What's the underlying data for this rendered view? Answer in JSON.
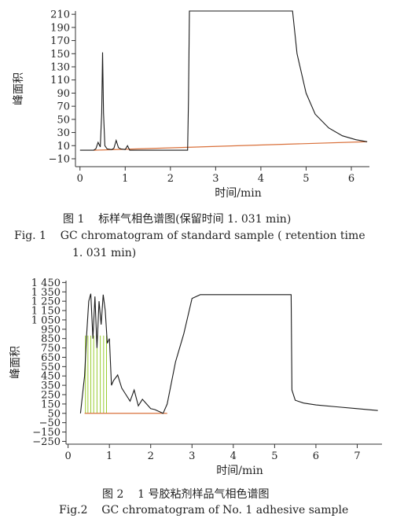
{
  "chart_data": [
    {
      "type": "line",
      "xlabel": "时间/min",
      "ylabel": "峰面积",
      "xlim": [
        -0.1,
        6.4
      ],
      "ylim": [
        -22,
        215
      ],
      "xticks": [
        0,
        1,
        2,
        3,
        4,
        5,
        6
      ],
      "yticks": [
        -10,
        10,
        30,
        50,
        70,
        90,
        110,
        130,
        150,
        170,
        190,
        210
      ],
      "series": [
        {
          "x": [
            0,
            0.3,
            0.35,
            0.4,
            0.45,
            0.48,
            0.5,
            0.52,
            0.55,
            0.6,
            0.7,
            0.75,
            0.8,
            0.85,
            0.9,
            1.0,
            1.05,
            1.1,
            1.2,
            1.5,
            2.0,
            2.38,
            2.4,
            2.42,
            2.45,
            4.7,
            4.8,
            5.0,
            5.2,
            5.5,
            5.8,
            6.1,
            6.35
          ],
          "y": [
            3,
            3,
            5,
            15,
            8,
            60,
            152,
            60,
            10,
            5,
            4,
            6,
            18,
            7,
            5,
            4,
            10,
            3,
            3,
            3,
            3,
            3,
            80,
            215,
            215,
            215,
            150,
            90,
            58,
            37,
            25,
            19,
            16
          ]
        }
      ],
      "baseline": {
        "x": [
          0.3,
          6.35
        ],
        "y": [
          3,
          16
        ]
      }
    },
    {
      "type": "line",
      "xlabel": "时间/min",
      "ylabel": "峰面积",
      "xlim": [
        -0.05,
        7.6
      ],
      "ylim": [
        -280,
        1470
      ],
      "xticks": [
        0,
        1,
        2,
        3,
        4,
        5,
        6,
        7
      ],
      "yticks": [
        1450,
        1350,
        1250,
        1150,
        1050,
        950,
        850,
        750,
        650,
        550,
        450,
        350,
        250,
        150,
        50,
        -50,
        -150,
        -250
      ],
      "series": [
        {
          "x": [
            0.3,
            0.4,
            0.45,
            0.5,
            0.55,
            0.6,
            0.65,
            0.7,
            0.75,
            0.8,
            0.85,
            0.9,
            0.95,
            1.0,
            1.05,
            1.1,
            1.2,
            1.3,
            1.4,
            1.5,
            1.6,
            1.7,
            1.8,
            1.9,
            2.0,
            2.1,
            2.2,
            2.3,
            2.4,
            2.6,
            2.8,
            3.0,
            3.2,
            4.0,
            5.0,
            5.4,
            5.42,
            5.5,
            5.7,
            6.0,
            6.5,
            7.0,
            7.5
          ],
          "y": [
            50,
            450,
            900,
            1250,
            1330,
            850,
            1300,
            750,
            1250,
            1000,
            1320,
            1150,
            800,
            850,
            350,
            400,
            460,
            320,
            250,
            180,
            300,
            130,
            200,
            150,
            100,
            90,
            70,
            50,
            150,
            600,
            900,
            1280,
            1320,
            1320,
            1320,
            1320,
            300,
            190,
            160,
            140,
            120,
            100,
            80
          ]
        }
      ],
      "baseline": {
        "x": [
          0.4,
          2.4
        ],
        "y": [
          50,
          50
        ]
      },
      "markers": [
        0.42,
        0.48,
        0.55,
        0.62,
        0.7,
        0.78,
        0.86,
        0.93
      ]
    }
  ],
  "captions": {
    "fig1_cn": "图 1    标样气相色谱图(保留时间 1. 031 min)",
    "fig1_en_1": "Fig. 1    GC chromatogram of standard sample ( retention time",
    "fig1_en_2": "1. 031 min)",
    "fig2_cn": "图 2    1 号胶粘剂样品气相色谱图",
    "fig2_en": "Fig.2    GC chromatogram of No. 1 adhesive sample"
  },
  "colors": {
    "signal": "#1a1a1a",
    "baseline": "#d9703a",
    "peak_marker": "#9acd32"
  }
}
